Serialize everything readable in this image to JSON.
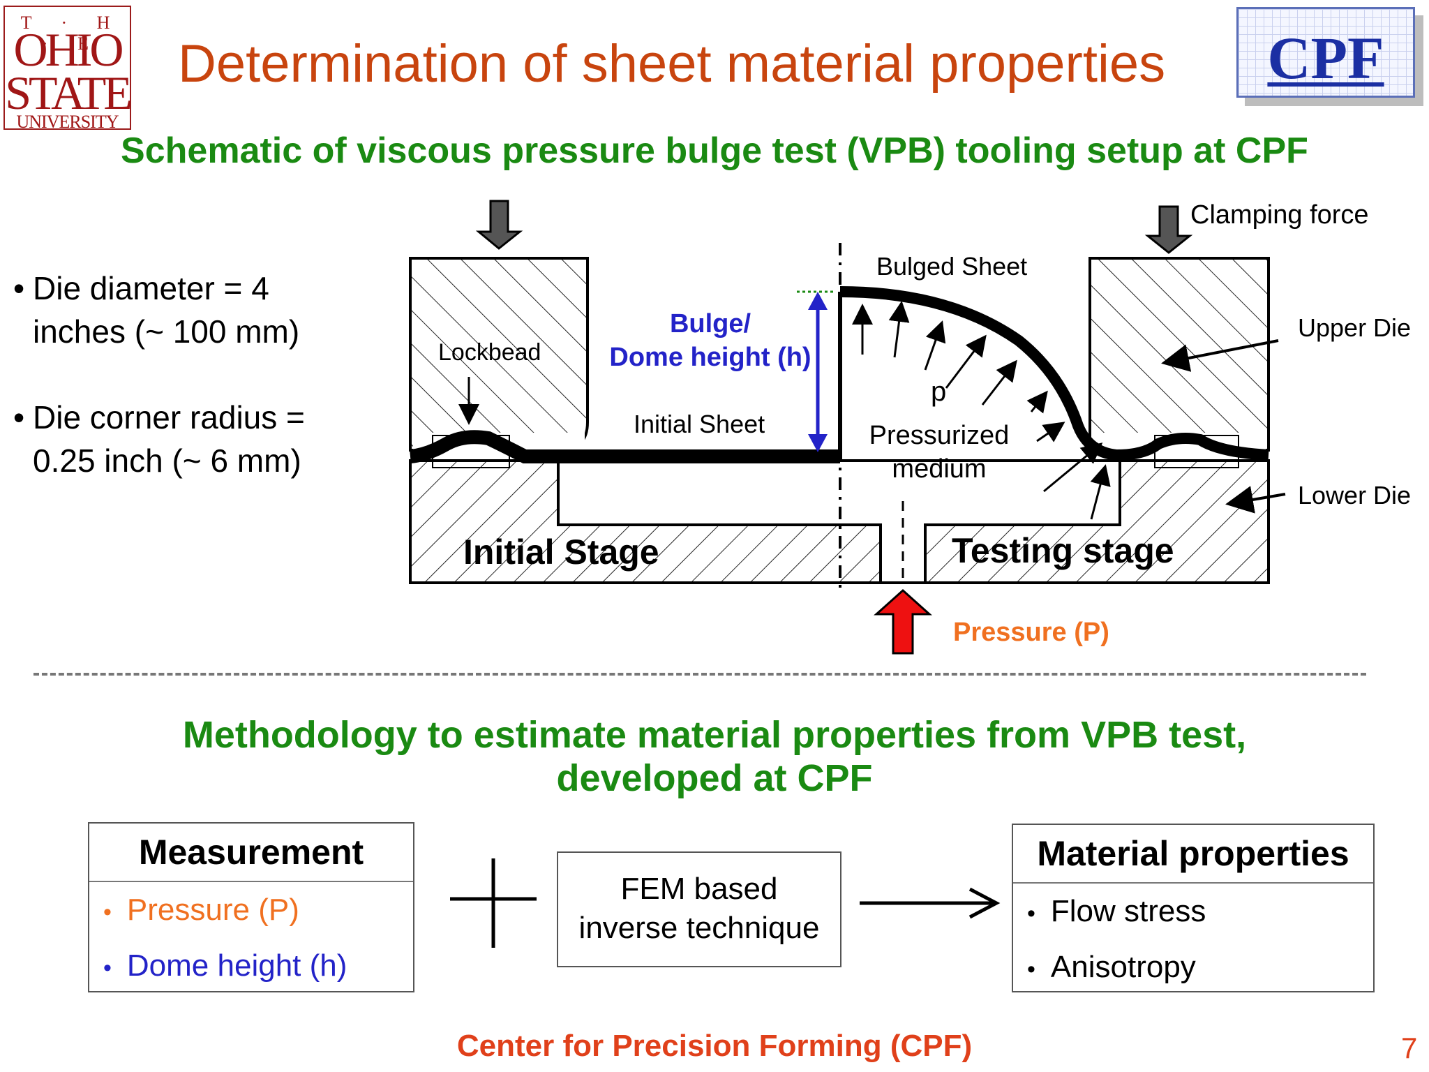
{
  "header": {
    "osu_logo": {
      "the": "T · H · E",
      "ohio": "OHIO",
      "state": "STATE",
      "university": "UNIVERSITY"
    },
    "cpf_logo": "CPF",
    "title": "Determination of sheet material properties",
    "subtitle": "Schematic of viscous pressure bulge test (VPB) tooling setup at CPF"
  },
  "specs": {
    "bullet_1": "Die diameter = 4 inches (~ 100 mm)",
    "bullet_2": "Die corner radius = 0.25 inch (~ 6 mm)"
  },
  "diagram": {
    "clamping_force": "Clamping force",
    "bulged_sheet": "Bulged Sheet",
    "upper_die": "Upper Die",
    "lower_die": "Lower Die",
    "lockbead": "Lockbead",
    "bulge_line1": "Bulge/",
    "bulge_line2": "Dome height (h)",
    "initial_sheet": "Initial Sheet",
    "p_symbol": "p",
    "medium_line1": "Pressurized",
    "medium_line2": "medium",
    "initial_stage": "Initial Stage",
    "testing_stage": "Testing stage",
    "pressure": "Pressure (P)",
    "colors": {
      "bulge_blue": "#2323c8",
      "pressure_orange": "#f07020",
      "pressure_arrow": "#ee1111"
    }
  },
  "methodology": {
    "title_line1": "Methodology to estimate material properties from VPB test,",
    "title_line2": "developed at CPF",
    "measurement": {
      "header": "Measurement",
      "item_1": "Pressure (P)",
      "item_2": "Dome height (h)"
    },
    "plus": "+",
    "fem": {
      "line1": "FEM based",
      "line2": "inverse technique"
    },
    "material": {
      "header": "Material properties",
      "item_1": "Flow stress",
      "item_2": "Anisotropy"
    }
  },
  "footer": {
    "text": "Center for Precision Forming (CPF)",
    "page": "7"
  }
}
